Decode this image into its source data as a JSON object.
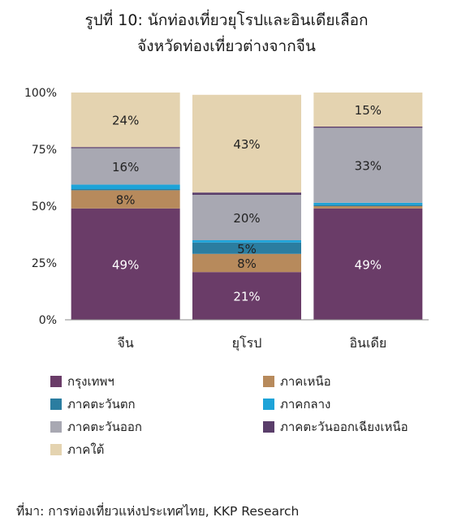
{
  "title_line1": "รูปที่ 10: นักท่องเที่ยวยุโรปและอินเดียเลือก",
  "title_line2": "จังหวัดท่องเที่ยวต่างจากจีน",
  "source": "ที่มา: การท่องเที่ยวแห่งประเทศไทย, KKP Research",
  "chart_data": {
    "type": "bar",
    "stacked": true,
    "categories": [
      "จีน",
      "ยุโรป",
      "อินเดีย"
    ],
    "ylim": [
      0,
      100
    ],
    "yticks": [
      "0%",
      "25%",
      "50%",
      "75%",
      "100%"
    ],
    "grid": false,
    "legend_position": "bottom",
    "series": [
      {
        "name": "กรุงเทพฯ",
        "color": "#6a3c68",
        "values": [
          49,
          21,
          49
        ],
        "labels": [
          "49%",
          "21%",
          "49%"
        ],
        "label_color": "#ffffff"
      },
      {
        "name": "ภาคเหนือ",
        "color": "#b78a5c",
        "values": [
          8,
          8,
          1
        ],
        "labels": [
          "8%",
          "8%",
          ""
        ],
        "label_color": "#222222"
      },
      {
        "name": "ภาคตะวันตก",
        "color": "#2b7da0",
        "values": [
          0.5,
          5,
          0.5
        ],
        "labels": [
          "",
          "5%",
          ""
        ],
        "label_color": "#222222"
      },
      {
        "name": "ภาคกลาง",
        "color": "#1ea3d8",
        "values": [
          2,
          1,
          1
        ],
        "labels": [
          "",
          "",
          ""
        ],
        "label_color": "#222222"
      },
      {
        "name": "ภาคตะวันออก",
        "color": "#a8a8b2",
        "values": [
          16,
          20,
          33
        ],
        "labels": [
          "16%",
          "20%",
          "33%"
        ],
        "label_color": "#222222"
      },
      {
        "name": "ภาคตะวันออกเฉียงเหนือ",
        "color": "#5a3e6a",
        "values": [
          0.5,
          1,
          0.5
        ],
        "labels": [
          "",
          "",
          ""
        ],
        "label_color": "#222222"
      },
      {
        "name": "ภาคใต้",
        "color": "#e4d3b0",
        "values": [
          24,
          43,
          15
        ],
        "labels": [
          "24%",
          "43%",
          "15%"
        ],
        "label_color": "#222222"
      }
    ]
  }
}
